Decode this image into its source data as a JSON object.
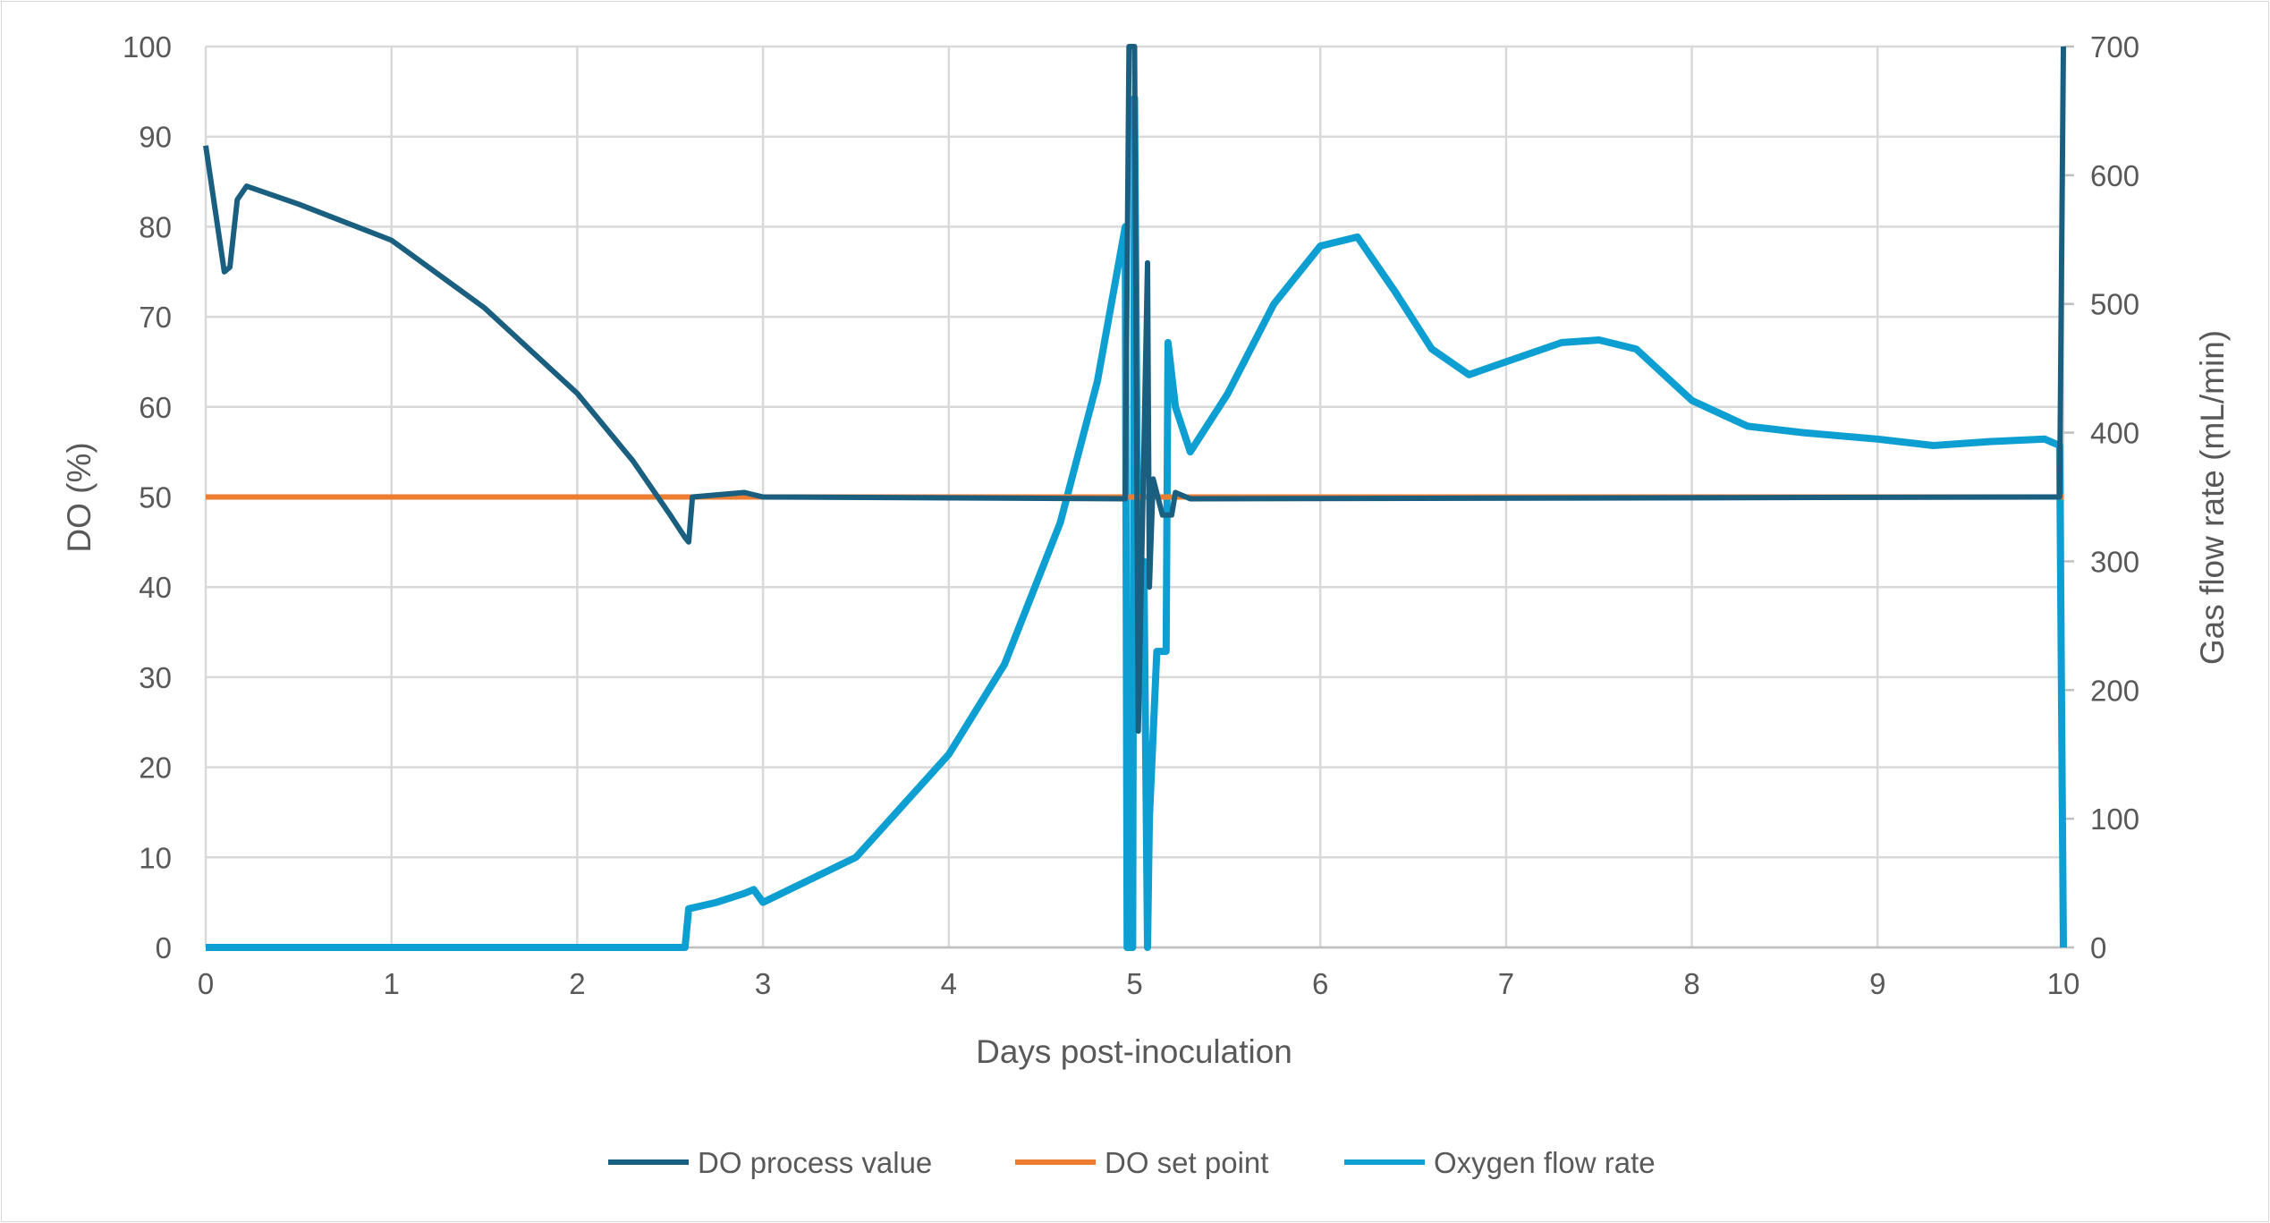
{
  "chart_data": {
    "type": "line",
    "title": "",
    "xlabel": "Days post-inoculation",
    "ylabel": "DO (%)",
    "y2label": "Gas flow rate (mL/min)",
    "xlim": [
      0,
      10
    ],
    "ylim": [
      0,
      100
    ],
    "y2lim": [
      0,
      700
    ],
    "xticks": [
      0,
      1,
      2,
      3,
      4,
      5,
      6,
      7,
      8,
      9,
      10
    ],
    "yticks": [
      0,
      10,
      20,
      30,
      40,
      50,
      60,
      70,
      80,
      90,
      100
    ],
    "y2ticks": [
      0,
      100,
      200,
      300,
      400,
      500,
      600,
      700
    ],
    "grid": true,
    "legend_position": "bottom",
    "series": [
      {
        "name": "DO process value",
        "axis": "left",
        "color": "#1b5f80",
        "points": [
          [
            0,
            89
          ],
          [
            0.05,
            82
          ],
          [
            0.1,
            75
          ],
          [
            0.13,
            75.5
          ],
          [
            0.17,
            83
          ],
          [
            0.22,
            84.5
          ],
          [
            0.5,
            82.5
          ],
          [
            1,
            78.5
          ],
          [
            1.5,
            71
          ],
          [
            2,
            61.5
          ],
          [
            2.3,
            54
          ],
          [
            2.5,
            48
          ],
          [
            2.58,
            45.5
          ],
          [
            2.6,
            45
          ],
          [
            2.62,
            50
          ],
          [
            2.9,
            50.5
          ],
          [
            3,
            50
          ],
          [
            4.95,
            49.8
          ],
          [
            4.97,
            100
          ],
          [
            5.0,
            100
          ],
          [
            5.02,
            24
          ],
          [
            5.05,
            55
          ],
          [
            5.07,
            76
          ],
          [
            5.08,
            40
          ],
          [
            5.1,
            52
          ],
          [
            5.15,
            48
          ],
          [
            5.2,
            48
          ],
          [
            5.22,
            50.5
          ],
          [
            5.3,
            49.8
          ],
          [
            9.98,
            50
          ],
          [
            10,
            100
          ]
        ]
      },
      {
        "name": "DO set point",
        "axis": "left",
        "color": "#ed7d31",
        "points": [
          [
            0,
            50
          ],
          [
            10,
            50
          ]
        ]
      },
      {
        "name": "Oxygen flow rate",
        "axis": "right",
        "color": "#0e9fd2",
        "points": [
          [
            0,
            0
          ],
          [
            2.58,
            0
          ],
          [
            2.6,
            30
          ],
          [
            2.75,
            35
          ],
          [
            2.9,
            42
          ],
          [
            2.95,
            45
          ],
          [
            3.0,
            35
          ],
          [
            3.5,
            70
          ],
          [
            4.0,
            150
          ],
          [
            4.3,
            220
          ],
          [
            4.6,
            330
          ],
          [
            4.8,
            440
          ],
          [
            4.95,
            560
          ],
          [
            4.96,
            0
          ],
          [
            4.99,
            0
          ],
          [
            5.0,
            660
          ],
          [
            5.02,
            250
          ],
          [
            5.05,
            300
          ],
          [
            5.07,
            0
          ],
          [
            5.08,
            100
          ],
          [
            5.12,
            230
          ],
          [
            5.17,
            230
          ],
          [
            5.18,
            470
          ],
          [
            5.22,
            420
          ],
          [
            5.3,
            385
          ],
          [
            5.5,
            430
          ],
          [
            5.75,
            500
          ],
          [
            6.0,
            545
          ],
          [
            6.2,
            552
          ],
          [
            6.4,
            510
          ],
          [
            6.6,
            465
          ],
          [
            6.8,
            445
          ],
          [
            7.0,
            455
          ],
          [
            7.3,
            470
          ],
          [
            7.5,
            472
          ],
          [
            7.7,
            465
          ],
          [
            8.0,
            425
          ],
          [
            8.3,
            405
          ],
          [
            8.6,
            400
          ],
          [
            9.0,
            395
          ],
          [
            9.3,
            390
          ],
          [
            9.6,
            393
          ],
          [
            9.9,
            395
          ],
          [
            9.98,
            390
          ],
          [
            10,
            0
          ]
        ]
      }
    ]
  }
}
